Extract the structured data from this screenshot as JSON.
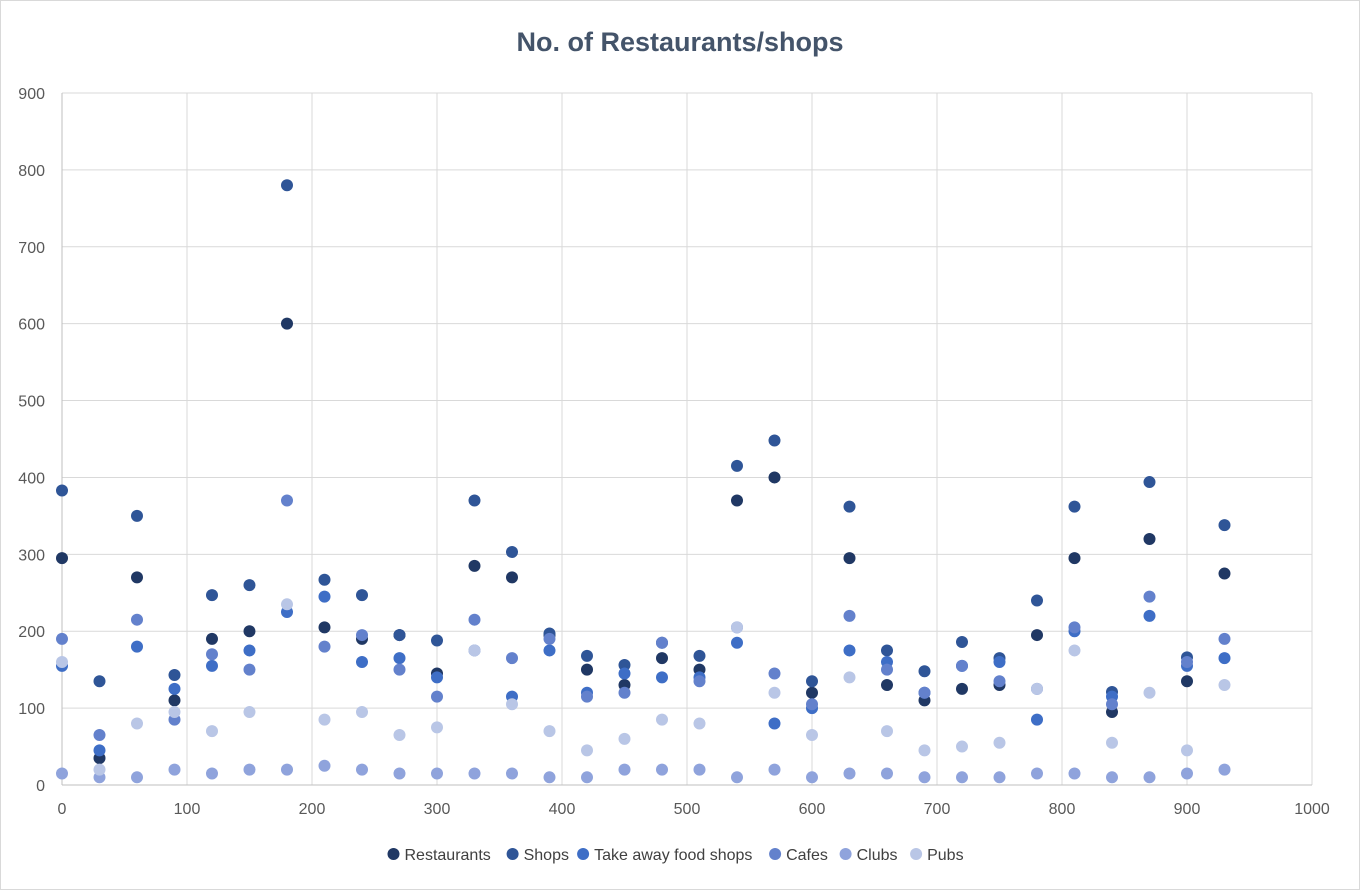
{
  "chart_data": {
    "type": "scatter",
    "title": "No. of Restaurants/shops",
    "xlabel": "",
    "ylabel": "",
    "xlim": [
      0,
      1000
    ],
    "ylim": [
      0,
      900
    ],
    "x_ticks": [
      0,
      100,
      200,
      300,
      400,
      500,
      600,
      700,
      800,
      900,
      1000
    ],
    "y_ticks": [
      0,
      100,
      200,
      300,
      400,
      500,
      600,
      700,
      800,
      900
    ],
    "grid": true,
    "legend_position": "bottom",
    "x": [
      0,
      30,
      60,
      90,
      120,
      150,
      180,
      210,
      240,
      270,
      300,
      330,
      360,
      390,
      420,
      450,
      480,
      510,
      540,
      570,
      600,
      630,
      660,
      690,
      720,
      750,
      780,
      810,
      840,
      870,
      900,
      930
    ],
    "series": [
      {
        "name": "Restaurants",
        "color": "#203864",
        "values": [
          295,
          35,
          270,
          110,
          190,
          200,
          600,
          205,
          190,
          195,
          145,
          285,
          270,
          195,
          150,
          130,
          165,
          150,
          370,
          400,
          120,
          295,
          130,
          110,
          125,
          130,
          195,
          295,
          95,
          320,
          135,
          275
        ]
      },
      {
        "name": "Shops",
        "color": "#2f5597",
        "values": [
          383,
          135,
          350,
          143,
          247,
          260,
          780,
          267,
          247,
          195,
          188,
          370,
          303,
          197,
          168,
          156,
          185,
          168,
          415,
          448,
          135,
          362,
          175,
          148,
          186,
          165,
          240,
          362,
          121,
          394,
          166,
          338
        ]
      },
      {
        "name": "Take away food shops",
        "color": "#3e6ec6",
        "values": [
          155,
          45,
          180,
          125,
          155,
          175,
          225,
          245,
          160,
          165,
          140,
          175,
          115,
          175,
          120,
          145,
          140,
          140,
          185,
          80,
          100,
          175,
          160,
          120,
          155,
          160,
          85,
          200,
          115,
          220,
          155,
          165
        ]
      },
      {
        "name": "Cafes",
        "color": "#6381cc",
        "values": [
          190,
          65,
          215,
          85,
          170,
          150,
          370,
          180,
          195,
          150,
          115,
          215,
          165,
          190,
          115,
          120,
          185,
          135,
          205,
          145,
          105,
          220,
          150,
          120,
          155,
          135,
          125,
          205,
          105,
          245,
          160,
          190
        ]
      },
      {
        "name": "Clubs",
        "color": "#8fa3dc",
        "values": [
          15,
          10,
          10,
          20,
          15,
          20,
          20,
          25,
          20,
          15,
          15,
          15,
          15,
          10,
          10,
          20,
          20,
          20,
          10,
          20,
          10,
          15,
          15,
          10,
          10,
          10,
          15,
          15,
          10,
          10,
          15,
          20
        ]
      },
      {
        "name": "Pubs",
        "color": "#b9c6e6",
        "values": [
          160,
          20,
          80,
          95,
          70,
          95,
          235,
          85,
          95,
          65,
          75,
          175,
          105,
          70,
          45,
          60,
          85,
          80,
          205,
          120,
          65,
          140,
          70,
          45,
          50,
          55,
          125,
          175,
          55,
          120,
          45,
          130
        ]
      }
    ]
  }
}
